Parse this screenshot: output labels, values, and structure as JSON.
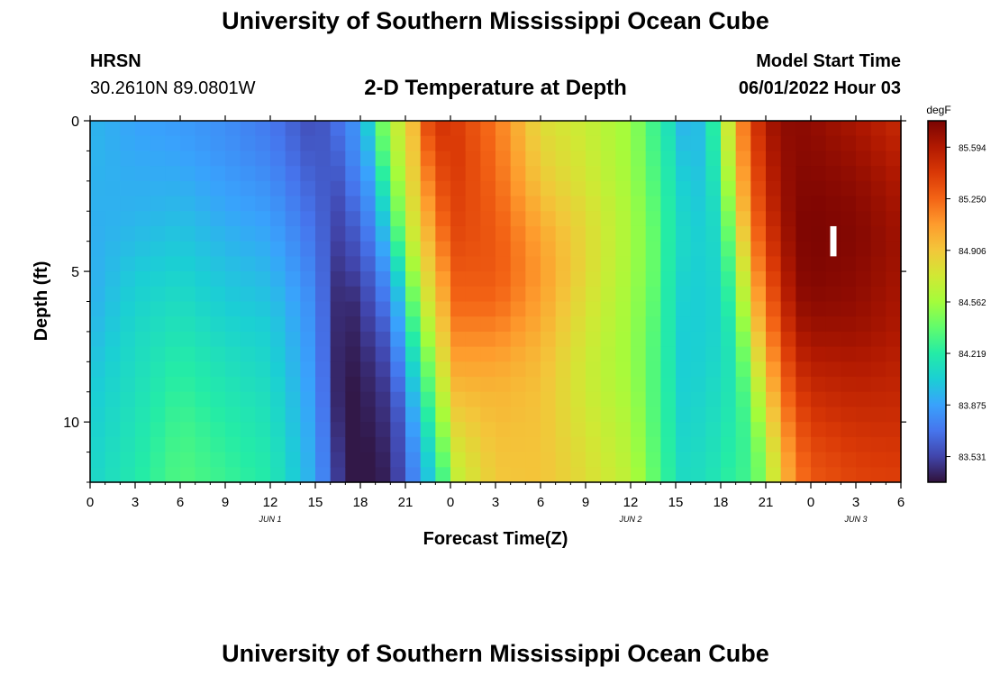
{
  "header": {
    "title": "University of Southern Mississippi Ocean Cube",
    "station": "HRSN",
    "coords": "30.2610N  89.0801W",
    "chart_title": "2-D Temperature at Depth",
    "model_label": "Model Start Time",
    "model_time": "06/01/2022 Hour 03"
  },
  "footer": {
    "title": "University of Southern Mississippi Ocean Cube"
  },
  "chart_data": {
    "type": "heatmap",
    "title": "2-D Temperature at Depth",
    "xlabel": "Forecast Time(Z)",
    "ylabel": "Depth (ft)",
    "x_tick_labels": [
      "0",
      "3",
      "6",
      "9",
      "12",
      "15",
      "18",
      "21",
      "0",
      "3",
      "6",
      "9",
      "12",
      "15",
      "18",
      "21",
      "0",
      "3",
      "6"
    ],
    "x_tick_hours": [
      0,
      3,
      6,
      9,
      12,
      15,
      18,
      21,
      24,
      27,
      30,
      33,
      36,
      39,
      42,
      45,
      48,
      51,
      54
    ],
    "date_labels": [
      {
        "label": "JUN 1",
        "hour": 12
      },
      {
        "label": "JUN 2",
        "hour": 36
      },
      {
        "label": "JUN 3",
        "hour": 51
      }
    ],
    "xlim": [
      0,
      54
    ],
    "y_tick_values": [
      0,
      5,
      10
    ],
    "y_tick_labels": [
      "0",
      "5",
      "10"
    ],
    "ylim": [
      0,
      12
    ],
    "y_inverted": true,
    "colorbar": {
      "unit": "degF",
      "ticks": [
        85.594,
        85.25,
        84.906,
        84.562,
        84.219,
        83.875,
        83.531
      ],
      "tick_labels": [
        "85.594",
        "85.250",
        "84.906",
        "84.562",
        "84.219",
        "83.875",
        "83.531"
      ],
      "range": [
        83.36,
        85.77
      ],
      "colormap": [
        "#30123b",
        "#4145ab",
        "#4675ed",
        "#39a2fc",
        "#1bcfd4",
        "#24eca6",
        "#61fc6c",
        "#a4fc3b",
        "#d1e834",
        "#f3c63a",
        "#fe9b2d",
        "#f36315",
        "#d93806",
        "#b11901",
        "#7a0402"
      ]
    },
    "depths": [
      0,
      1,
      2,
      3,
      4,
      5,
      6,
      7,
      8,
      9,
      10,
      11,
      12
    ],
    "key_hours": [
      0,
      3,
      6,
      9,
      12,
      15,
      16.5,
      17.5,
      18.5,
      19.5,
      20.5,
      21.5,
      22.5,
      23.5,
      24.5,
      27,
      30,
      33,
      36,
      37.5,
      38.5,
      39.5,
      41,
      42,
      43,
      44,
      45,
      46,
      47,
      48,
      51,
      54
    ],
    "columns": [
      [
        83.95,
        83.95,
        83.94,
        83.93,
        83.92,
        83.92,
        83.93,
        83.96,
        84.0,
        84.03,
        84.05,
        84.07,
        84.08
      ],
      [
        83.88,
        83.9,
        83.92,
        83.94,
        83.98,
        84.03,
        84.07,
        84.1,
        84.12,
        84.14,
        84.16,
        84.18,
        84.2
      ],
      [
        83.85,
        83.88,
        83.92,
        83.97,
        84.02,
        84.07,
        84.12,
        84.17,
        84.22,
        84.26,
        84.3,
        84.33,
        84.35
      ],
      [
        83.8,
        83.82,
        83.86,
        83.9,
        83.95,
        84.0,
        84.04,
        84.09,
        84.14,
        84.18,
        84.22,
        84.25,
        84.28
      ],
      [
        83.72,
        83.75,
        83.8,
        83.85,
        83.9,
        83.95,
        84.0,
        84.05,
        84.08,
        84.12,
        84.15,
        84.18,
        84.2
      ],
      [
        83.55,
        83.58,
        83.62,
        83.66,
        83.7,
        83.74,
        83.78,
        83.8,
        83.82,
        83.84,
        83.86,
        83.88,
        83.9
      ],
      [
        83.7,
        83.65,
        83.6,
        83.55,
        83.52,
        83.48,
        83.45,
        83.44,
        83.43,
        83.43,
        83.45,
        83.48,
        83.5
      ],
      [
        83.8,
        83.78,
        83.72,
        83.65,
        83.58,
        83.52,
        83.45,
        83.42,
        83.4,
        83.38,
        83.38,
        83.38,
        83.38
      ],
      [
        84.05,
        83.95,
        83.85,
        83.78,
        83.7,
        83.62,
        83.55,
        83.5,
        83.45,
        83.42,
        83.4,
        83.38,
        83.38
      ],
      [
        84.45,
        84.35,
        84.2,
        84.05,
        83.92,
        83.8,
        83.7,
        83.6,
        83.53,
        83.48,
        83.45,
        83.42,
        83.4
      ],
      [
        84.7,
        84.65,
        84.55,
        84.45,
        84.3,
        84.1,
        83.95,
        83.85,
        83.75,
        83.65,
        83.58,
        83.55,
        83.52
      ],
      [
        84.95,
        84.9,
        84.85,
        84.78,
        84.7,
        84.55,
        84.4,
        84.25,
        84.1,
        83.98,
        83.88,
        83.8,
        83.75
      ],
      [
        85.35,
        85.25,
        85.15,
        85.05,
        84.95,
        84.85,
        84.75,
        84.6,
        84.45,
        84.32,
        84.2,
        84.08,
        84.0
      ],
      [
        85.45,
        85.4,
        85.35,
        85.28,
        85.2,
        85.1,
        85.0,
        84.9,
        84.8,
        84.68,
        84.55,
        84.42,
        84.3
      ],
      [
        85.4,
        85.42,
        85.4,
        85.38,
        85.35,
        85.3,
        85.25,
        85.15,
        85.05,
        84.95,
        84.85,
        84.75,
        84.68
      ],
      [
        85.2,
        85.22,
        85.25,
        85.28,
        85.3,
        85.3,
        85.25,
        85.15,
        85.05,
        84.98,
        84.95,
        84.92,
        84.9
      ],
      [
        84.8,
        84.85,
        84.9,
        84.98,
        85.05,
        85.08,
        85.05,
        85.0,
        84.95,
        84.93,
        84.92,
        84.92,
        84.92
      ],
      [
        84.7,
        84.72,
        84.75,
        84.8,
        84.82,
        84.82,
        84.78,
        84.75,
        84.72,
        84.72,
        84.75,
        84.78,
        84.8
      ],
      [
        84.55,
        84.55,
        84.56,
        84.58,
        84.58,
        84.57,
        84.56,
        84.55,
        84.55,
        84.57,
        84.6,
        84.62,
        84.65
      ],
      [
        84.3,
        84.32,
        84.35,
        84.38,
        84.4,
        84.4,
        84.38,
        84.36,
        84.35,
        84.35,
        84.36,
        84.38,
        84.4
      ],
      [
        84.15,
        84.18,
        84.2,
        84.22,
        84.22,
        84.21,
        84.2,
        84.2,
        84.2,
        84.21,
        84.22,
        84.23,
        84.24
      ],
      [
        83.95,
        84.0,
        84.05,
        84.08,
        84.1,
        84.08,
        84.06,
        84.05,
        84.05,
        84.06,
        84.08,
        84.1,
        84.12
      ],
      [
        84.0,
        83.98,
        84.0,
        84.02,
        84.04,
        84.04,
        84.04,
        84.05,
        84.06,
        84.08,
        84.1,
        84.12,
        84.14
      ],
      [
        84.45,
        84.4,
        84.3,
        84.2,
        84.15,
        84.12,
        84.1,
        84.1,
        84.12,
        84.14,
        84.16,
        84.18,
        84.2
      ],
      [
        85.0,
        84.95,
        84.85,
        84.75,
        84.6,
        84.45,
        84.35,
        84.25,
        84.2,
        84.2,
        84.22,
        84.25,
        84.28
      ],
      [
        85.35,
        85.3,
        85.25,
        85.18,
        85.1,
        85.0,
        84.9,
        84.75,
        84.6,
        84.45,
        84.35,
        84.3,
        84.3
      ],
      [
        85.6,
        85.55,
        85.5,
        85.45,
        85.38,
        85.3,
        85.2,
        85.1,
        84.98,
        84.85,
        84.72,
        84.6,
        84.55
      ],
      [
        85.7,
        85.68,
        85.66,
        85.63,
        85.58,
        85.52,
        85.45,
        85.35,
        85.25,
        85.15,
        85.05,
        84.95,
        84.9
      ],
      [
        85.72,
        85.72,
        85.73,
        85.74,
        85.74,
        85.72,
        85.68,
        85.6,
        85.5,
        85.4,
        85.3,
        85.22,
        85.15
      ],
      [
        85.7,
        85.72,
        85.74,
        85.76,
        85.76,
        85.75,
        85.72,
        85.66,
        85.58,
        85.5,
        85.42,
        85.35,
        85.3
      ],
      [
        85.62,
        85.66,
        85.7,
        85.73,
        85.74,
        85.72,
        85.7,
        85.66,
        85.6,
        85.54,
        85.48,
        85.42,
        85.38
      ],
      [
        85.5,
        85.55,
        85.6,
        85.63,
        85.65,
        85.64,
        85.62,
        85.6,
        85.56,
        85.52,
        85.48,
        85.44,
        85.4
      ]
    ],
    "marker": {
      "hour": 49.5,
      "depth_top": 3.5,
      "depth_bottom": 4.5
    }
  }
}
